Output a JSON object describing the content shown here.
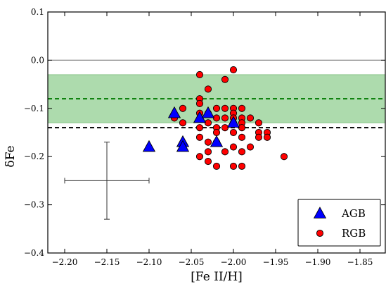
{
  "chart_data": {
    "type": "scatter",
    "xlabel": "[Fe II/H]",
    "ylabel": "δFe",
    "xlim": [
      -2.22,
      -1.82
    ],
    "ylim": [
      -0.4,
      0.1
    ],
    "xticks": [
      -2.2,
      -2.15,
      -2.1,
      -2.05,
      -2.0,
      -1.95,
      -1.9,
      -1.85
    ],
    "xtick_labels": [
      "−2.20",
      "−2.15",
      "−2.10",
      "−2.05",
      "−2.00",
      "−1.95",
      "−1.90",
      "−1.85"
    ],
    "yticks": [
      0.1,
      0.0,
      -0.1,
      -0.2,
      -0.3,
      -0.4
    ],
    "ytick_labels": [
      "0.1",
      "0.0",
      "−0.1",
      "−0.2",
      "−0.3",
      "−0.4"
    ],
    "grid": false,
    "legend_position": "bottom-right",
    "reference_lines": [
      {
        "y": 0.0,
        "style": "solid",
        "color": "#808080"
      },
      {
        "y": -0.08,
        "style": "dashed",
        "color": "#007a00"
      },
      {
        "y": -0.14,
        "style": "dashed",
        "color": "#000000"
      }
    ],
    "band": {
      "y_low": -0.13,
      "y_high": -0.03,
      "color": "#a9d9a9"
    },
    "error_bar": {
      "x": -2.15,
      "y": -0.25,
      "xerr": 0.05,
      "yerr": 0.08
    },
    "series": [
      {
        "name": "AGB",
        "marker": "triangle",
        "color": "#0000ff",
        "points": [
          [
            -2.1,
            -0.18
          ],
          [
            -2.07,
            -0.11
          ],
          [
            -2.06,
            -0.17
          ],
          [
            -2.06,
            -0.18
          ],
          [
            -2.04,
            -0.12
          ],
          [
            -2.03,
            -0.11
          ],
          [
            -2.02,
            -0.17
          ],
          [
            -2.0,
            -0.13
          ]
        ]
      },
      {
        "name": "RGB",
        "marker": "circle",
        "color": "#ff0000",
        "points": [
          [
            -2.07,
            -0.12
          ],
          [
            -2.06,
            -0.1
          ],
          [
            -2.06,
            -0.13
          ],
          [
            -2.04,
            -0.03
          ],
          [
            -2.04,
            -0.08
          ],
          [
            -2.04,
            -0.09
          ],
          [
            -2.04,
            -0.11
          ],
          [
            -2.04,
            -0.14
          ],
          [
            -2.04,
            -0.16
          ],
          [
            -2.04,
            -0.2
          ],
          [
            -2.03,
            -0.06
          ],
          [
            -2.03,
            -0.11
          ],
          [
            -2.03,
            -0.13
          ],
          [
            -2.03,
            -0.17
          ],
          [
            -2.03,
            -0.19
          ],
          [
            -2.03,
            -0.21
          ],
          [
            -2.02,
            -0.1
          ],
          [
            -2.02,
            -0.12
          ],
          [
            -2.02,
            -0.14
          ],
          [
            -2.02,
            -0.15
          ],
          [
            -2.02,
            -0.17
          ],
          [
            -2.02,
            -0.22
          ],
          [
            -2.01,
            -0.04
          ],
          [
            -2.01,
            -0.1
          ],
          [
            -2.01,
            -0.12
          ],
          [
            -2.01,
            -0.14
          ],
          [
            -2.01,
            -0.19
          ],
          [
            -2.0,
            -0.02
          ],
          [
            -2.0,
            -0.1
          ],
          [
            -2.0,
            -0.11
          ],
          [
            -2.0,
            -0.12
          ],
          [
            -2.0,
            -0.13
          ],
          [
            -2.0,
            -0.15
          ],
          [
            -2.0,
            -0.18
          ],
          [
            -2.0,
            -0.22
          ],
          [
            -1.99,
            -0.1
          ],
          [
            -1.99,
            -0.12
          ],
          [
            -1.99,
            -0.13
          ],
          [
            -1.99,
            -0.14
          ],
          [
            -1.99,
            -0.16
          ],
          [
            -1.99,
            -0.19
          ],
          [
            -1.99,
            -0.22
          ],
          [
            -1.98,
            -0.12
          ],
          [
            -1.98,
            -0.18
          ],
          [
            -1.97,
            -0.13
          ],
          [
            -1.97,
            -0.15
          ],
          [
            -1.97,
            -0.16
          ],
          [
            -1.96,
            -0.15
          ],
          [
            -1.96,
            -0.16
          ],
          [
            -1.94,
            -0.2
          ]
        ]
      }
    ]
  }
}
